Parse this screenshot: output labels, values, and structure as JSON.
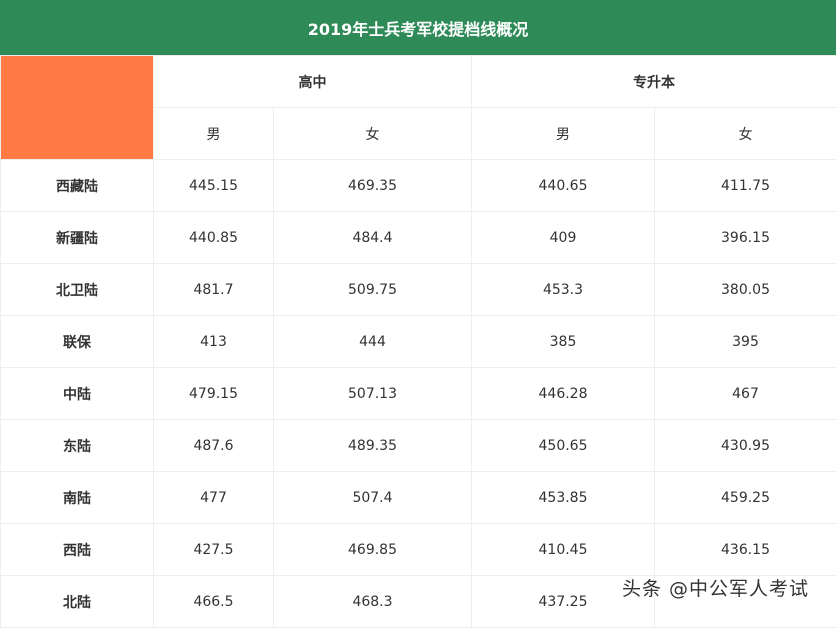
{
  "title": "2019年士兵考军校提档线概况",
  "groups": [
    "高中",
    "专升本"
  ],
  "subheaders": [
    "男",
    "女",
    "男",
    "女"
  ],
  "rows": [
    {
      "region": "西藏陆",
      "values": [
        "445.15",
        "469.35",
        "440.65",
        "411.75"
      ]
    },
    {
      "region": "新疆陆",
      "values": [
        "440.85",
        "484.4",
        "409",
        "396.15"
      ]
    },
    {
      "region": "北卫陆",
      "values": [
        "481.7",
        "509.75",
        "453.3",
        "380.05"
      ]
    },
    {
      "region": "联保",
      "values": [
        "413",
        "444",
        "385",
        "395"
      ]
    },
    {
      "region": "中陆",
      "values": [
        "479.15",
        "507.13",
        "446.28",
        "467"
      ]
    },
    {
      "region": "东陆",
      "values": [
        "487.6",
        "489.35",
        "450.65",
        "430.95"
      ]
    },
    {
      "region": "南陆",
      "values": [
        "477",
        "507.4",
        "453.85",
        "459.25"
      ]
    },
    {
      "region": "西陆",
      "values": [
        "427.5",
        "469.85",
        "410.45",
        "436.15"
      ]
    },
    {
      "region": "北陆",
      "values": [
        "466.5",
        "468.3",
        "437.25",
        ""
      ]
    }
  ],
  "watermark": "头条 @中公军人考试",
  "colors": {
    "title_bg": "#2e8b57",
    "corner": "#ff7a45"
  }
}
